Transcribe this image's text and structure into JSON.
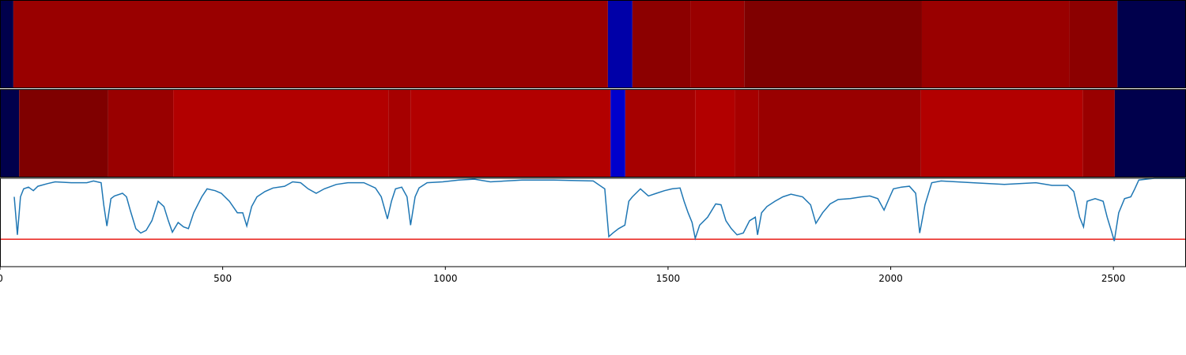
{
  "chart_data": {
    "type": "strips_line",
    "xlim": [
      0,
      2663
    ],
    "xticks": [
      0,
      500,
      1000,
      1500,
      2000,
      2500
    ],
    "strips": [
      {
        "bounds": [
          0,
          30,
          1365,
          1420,
          1550,
          1671,
          2070,
          2401,
          2509,
          2663
        ],
        "colors": [
          "#00004c",
          "#990000",
          "#0000a8",
          "#8c0000",
          "#990000",
          "#7f0000",
          "#990000",
          "#8c0000",
          "#00004c"
        ]
      },
      {
        "bounds": [
          0,
          43,
          243,
          389,
          872,
          922,
          1371,
          1404,
          1561,
          1650,
          1703,
          2068,
          2431,
          2503,
          2663
        ],
        "colors": [
          "#00004c",
          "#7f0000",
          "#990000",
          "#b20000",
          "#a60000",
          "#b20000",
          "#0000cc",
          "#a60000",
          "#b20000",
          "#a60000",
          "#990000",
          "#b20000",
          "#990000",
          "#00004c"
        ]
      }
    ],
    "ylim": [
      0,
      1.0
    ],
    "threshold": 0.31,
    "threshold_color": "#e8211b",
    "line_color": "#1f77b4",
    "x": [
      32,
      39,
      46,
      53,
      64,
      75,
      85,
      107,
      124,
      160,
      195,
      210,
      227,
      233,
      240,
      249,
      257,
      275,
      284,
      293,
      305,
      316,
      328,
      341,
      355,
      368,
      378,
      387,
      400,
      412,
      423,
      435,
      453,
      465,
      483,
      497,
      515,
      533,
      545,
      554,
      565,
      577,
      595,
      613,
      639,
      657,
      675,
      692,
      710,
      728,
      755,
      781,
      817,
      843,
      856,
      870,
      879,
      888,
      902,
      914,
      922,
      932,
      941,
      959,
      994,
      1030,
      1065,
      1101,
      1136,
      1172,
      1243,
      1332,
      1358,
      1367,
      1376,
      1389,
      1403,
      1412,
      1420,
      1438,
      1456,
      1474,
      1492,
      1509,
      1527,
      1536,
      1545,
      1554,
      1561,
      1571,
      1589,
      1607,
      1619,
      1630,
      1642,
      1655,
      1669,
      1683,
      1696,
      1701,
      1710,
      1722,
      1740,
      1758,
      1776,
      1802,
      1820,
      1832,
      1847,
      1864,
      1882,
      1909,
      1935,
      1953,
      1971,
      1985,
      1998,
      2006,
      2024,
      2042,
      2056,
      2065,
      2077,
      2092,
      2113,
      2184,
      2255,
      2326,
      2362,
      2397,
      2411,
      2424,
      2433,
      2441,
      2459,
      2477,
      2486,
      2495,
      2502,
      2512,
      2525,
      2539,
      2548,
      2557,
      2592,
      2628,
      2663
    ],
    "values": [
      0.79,
      0.36,
      0.79,
      0.88,
      0.9,
      0.86,
      0.91,
      0.94,
      0.96,
      0.95,
      0.95,
      0.97,
      0.95,
      0.7,
      0.46,
      0.77,
      0.8,
      0.83,
      0.79,
      0.63,
      0.43,
      0.38,
      0.41,
      0.52,
      0.74,
      0.68,
      0.52,
      0.39,
      0.5,
      0.45,
      0.43,
      0.61,
      0.79,
      0.88,
      0.86,
      0.83,
      0.74,
      0.61,
      0.61,
      0.46,
      0.68,
      0.79,
      0.85,
      0.89,
      0.91,
      0.96,
      0.95,
      0.88,
      0.83,
      0.88,
      0.93,
      0.95,
      0.95,
      0.89,
      0.79,
      0.54,
      0.74,
      0.88,
      0.9,
      0.79,
      0.47,
      0.79,
      0.89,
      0.95,
      0.96,
      0.98,
      0.99,
      0.96,
      0.97,
      0.98,
      0.98,
      0.97,
      0.88,
      0.34,
      0.38,
      0.43,
      0.47,
      0.74,
      0.79,
      0.88,
      0.8,
      0.83,
      0.86,
      0.88,
      0.89,
      0.74,
      0.61,
      0.5,
      0.32,
      0.47,
      0.56,
      0.71,
      0.7,
      0.52,
      0.43,
      0.36,
      0.38,
      0.52,
      0.56,
      0.36,
      0.61,
      0.68,
      0.74,
      0.79,
      0.82,
      0.79,
      0.7,
      0.49,
      0.61,
      0.71,
      0.76,
      0.77,
      0.79,
      0.8,
      0.77,
      0.64,
      0.79,
      0.88,
      0.9,
      0.91,
      0.83,
      0.38,
      0.7,
      0.95,
      0.97,
      0.95,
      0.93,
      0.95,
      0.92,
      0.92,
      0.85,
      0.56,
      0.45,
      0.74,
      0.77,
      0.74,
      0.56,
      0.41,
      0.29,
      0.61,
      0.77,
      0.79,
      0.88,
      0.98,
      1.0,
      1.0,
      1.0
    ]
  }
}
